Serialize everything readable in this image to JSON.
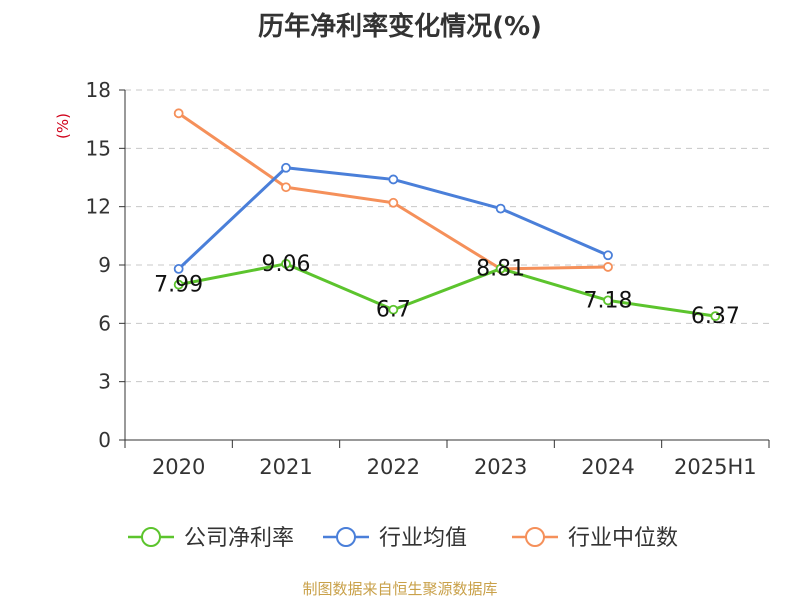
{
  "chart_data": {
    "type": "line",
    "title": "历年净利率变化情况(%)",
    "ylabel": "(%)",
    "categories": [
      "2020",
      "2021",
      "2022",
      "2023",
      "2024",
      "2025H1"
    ],
    "ylim": [
      0,
      18
    ],
    "yticks": [
      "0",
      "3",
      "6",
      "9",
      "12",
      "15",
      "18"
    ],
    "grid": true,
    "legend_position": "bottom",
    "series": [
      {
        "name": "公司净利率",
        "color": "#5cc42d",
        "values": [
          7.99,
          9.06,
          6.7,
          8.81,
          7.18,
          6.37
        ],
        "labels": [
          "7.99",
          "9.06",
          "6.7",
          "8.81",
          "7.18",
          "6.37"
        ]
      },
      {
        "name": "行业均值",
        "color": "#4a7fd9",
        "values": [
          8.8,
          14.0,
          13.4,
          11.9,
          9.5,
          null
        ],
        "labels": []
      },
      {
        "name": "行业中位数",
        "color": "#f5905a",
        "values": [
          16.8,
          13.0,
          12.2,
          8.8,
          8.9,
          null
        ],
        "labels": []
      }
    ]
  },
  "footer": {
    "source": "制图数据来自恒生聚源数据库"
  }
}
